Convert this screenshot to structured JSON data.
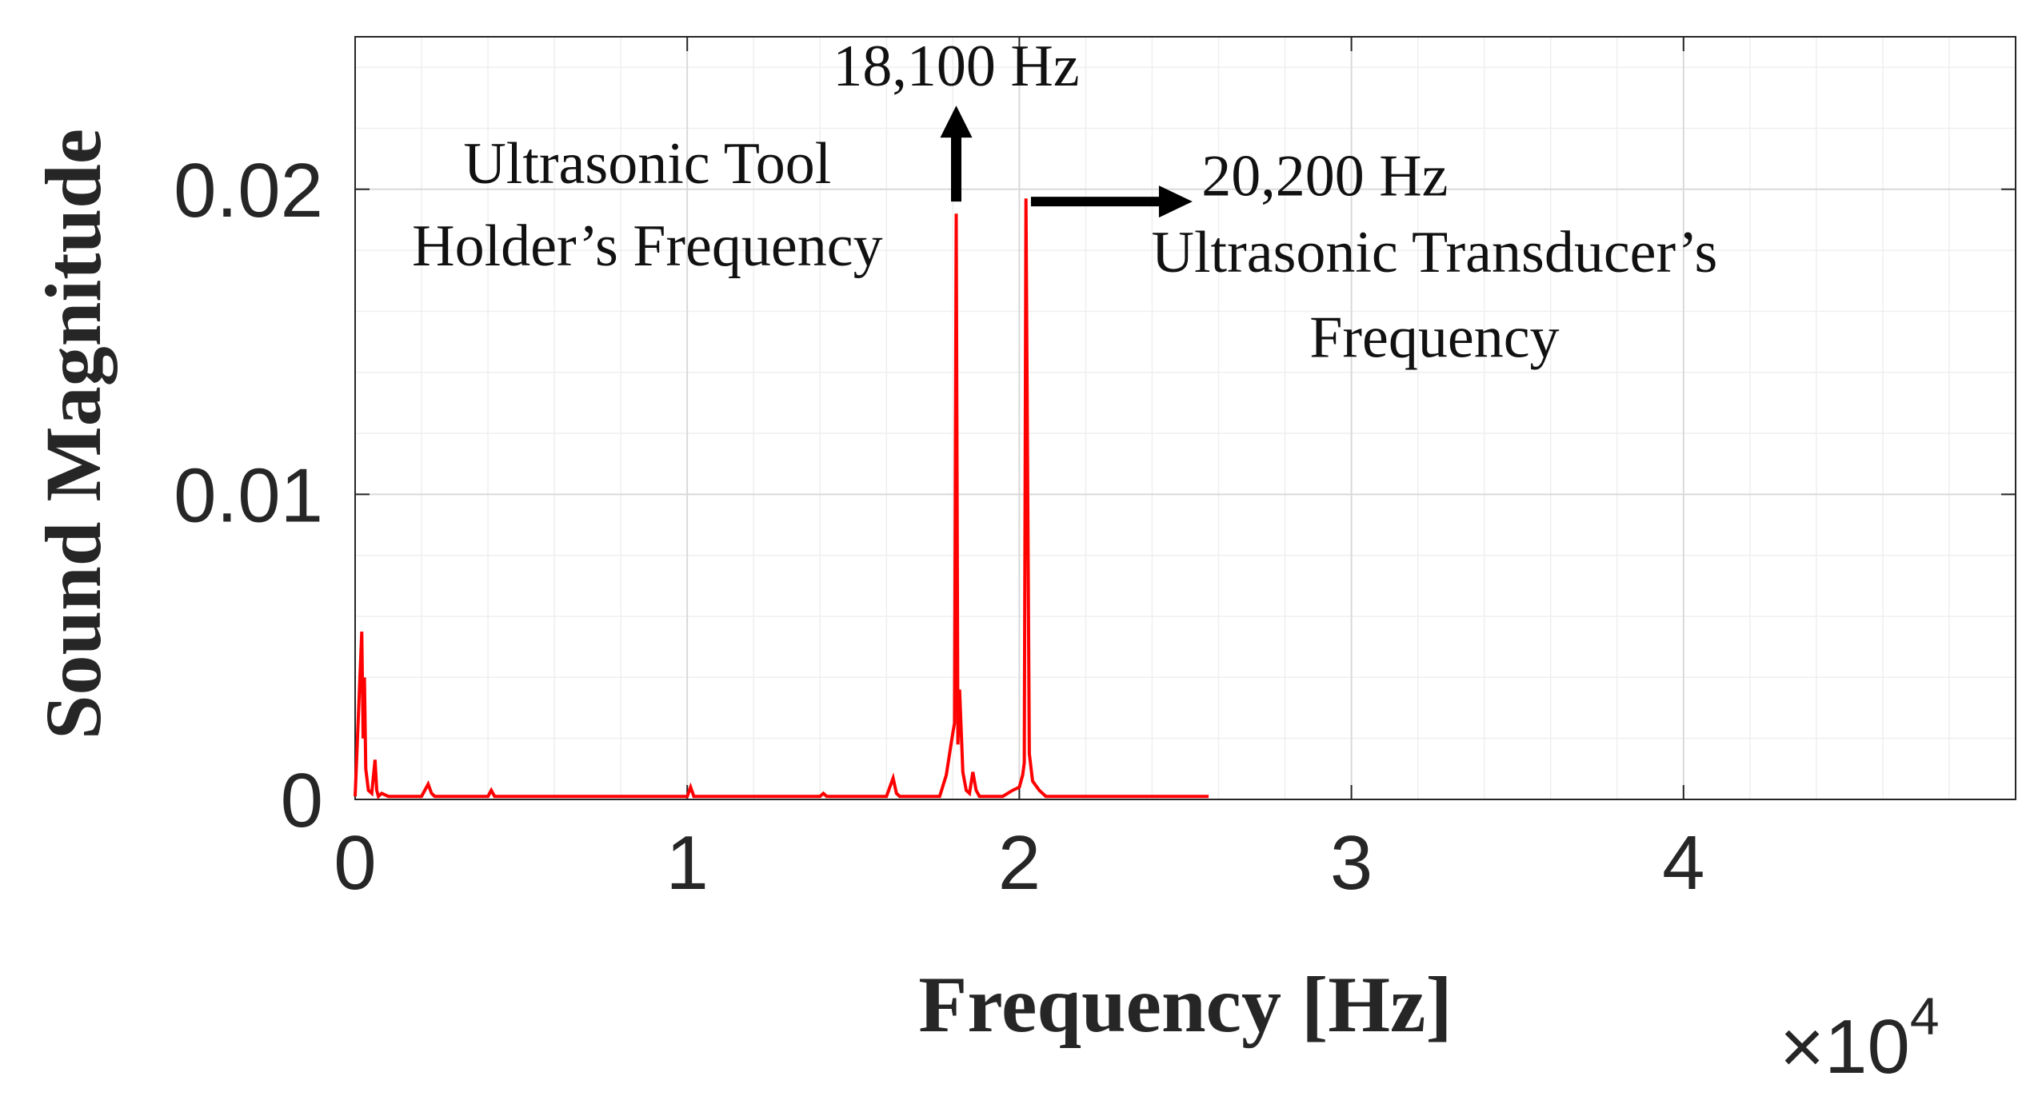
{
  "chart_data": {
    "type": "line",
    "title": "",
    "xlabel": "Frequency [Hz]",
    "ylabel": "Sound Magnitude",
    "xlim": [
      0,
      50000
    ],
    "ylim": [
      0,
      0.025
    ],
    "x_exponent_label": {
      "base": "×10",
      "exponent": "4"
    },
    "xticks": [
      0,
      10000,
      20000,
      30000,
      40000
    ],
    "xtick_labels": [
      "0",
      "1",
      "2",
      "3",
      "4"
    ],
    "yticks": [
      0,
      0.01,
      0.02
    ],
    "ytick_labels": [
      "0",
      "0.01",
      "0.02"
    ],
    "grid": true,
    "minor_grid": true,
    "series": [
      {
        "color": "#ff0000",
        "x": [
          0,
          200,
          240,
          280,
          320,
          400,
          500,
          600,
          650,
          700,
          800,
          1000,
          1500,
          2000,
          2200,
          2300,
          2400,
          2600,
          3000,
          4000,
          4100,
          4200,
          6000,
          8000,
          10000,
          10100,
          10200,
          12000,
          14000,
          14100,
          14200,
          16000,
          16200,
          16300,
          16400,
          17000,
          17600,
          17800,
          17900,
          18000,
          18050,
          18100,
          18150,
          18200,
          18300,
          18400,
          18500,
          18600,
          18700,
          18800,
          19000,
          19500,
          19800,
          20000,
          20100,
          20150,
          20200,
          20300,
          20400,
          20600,
          20800,
          21000,
          21500,
          22000,
          23000,
          24000,
          25000,
          25700
        ],
        "values": [
          0.0001,
          0.0055,
          0.002,
          0.004,
          0.001,
          0.0003,
          0.0002,
          0.0013,
          0.0003,
          0.0001,
          0.0002,
          0.0001,
          0.0001,
          0.0001,
          0.0005,
          0.0002,
          0.0001,
          0.0001,
          0.0001,
          0.0001,
          0.0003,
          0.0001,
          0.0001,
          0.0001,
          0.0001,
          0.0004,
          0.0001,
          0.0001,
          0.0001,
          0.0002,
          0.0001,
          0.0001,
          0.0007,
          0.0002,
          0.0001,
          0.0001,
          0.0001,
          0.0008,
          0.0015,
          0.0022,
          0.0025,
          0.0192,
          0.0018,
          0.0036,
          0.0009,
          0.0003,
          0.0002,
          0.0009,
          0.0003,
          0.0001,
          0.0001,
          0.0001,
          0.0003,
          0.0004,
          0.0008,
          0.0012,
          0.0197,
          0.0015,
          0.0006,
          0.0003,
          0.0001,
          0.0001,
          0.0001,
          0.0001,
          0.0001,
          0.0001,
          0.0001,
          0.0001
        ]
      }
    ],
    "annotations": [
      {
        "text": "18,100 Hz",
        "x": 18100,
        "y": 0.0234
      },
      {
        "text": "Ultrasonic Tool",
        "x": 8800,
        "y": 0.0202
      },
      {
        "text": "Holder’s Frequency",
        "x": 8800,
        "y": 0.0175
      },
      {
        "text": "20,200 Hz",
        "x": 29200,
        "y": 0.0198
      },
      {
        "text": "Ultrasonic Transducer’s",
        "x": 32500,
        "y": 0.0173
      },
      {
        "text": "Frequency",
        "x": 32500,
        "y": 0.0145
      }
    ],
    "arrows": [
      {
        "direction": "up",
        "points_to": "18,100 Hz"
      },
      {
        "direction": "right",
        "points_to": "20,200 Hz"
      }
    ]
  },
  "colors": {
    "series": "#ff0000",
    "axes": "#262626",
    "grid": "#d9d9d9",
    "minor_grid": "#efefef",
    "arrow": "#000000"
  }
}
